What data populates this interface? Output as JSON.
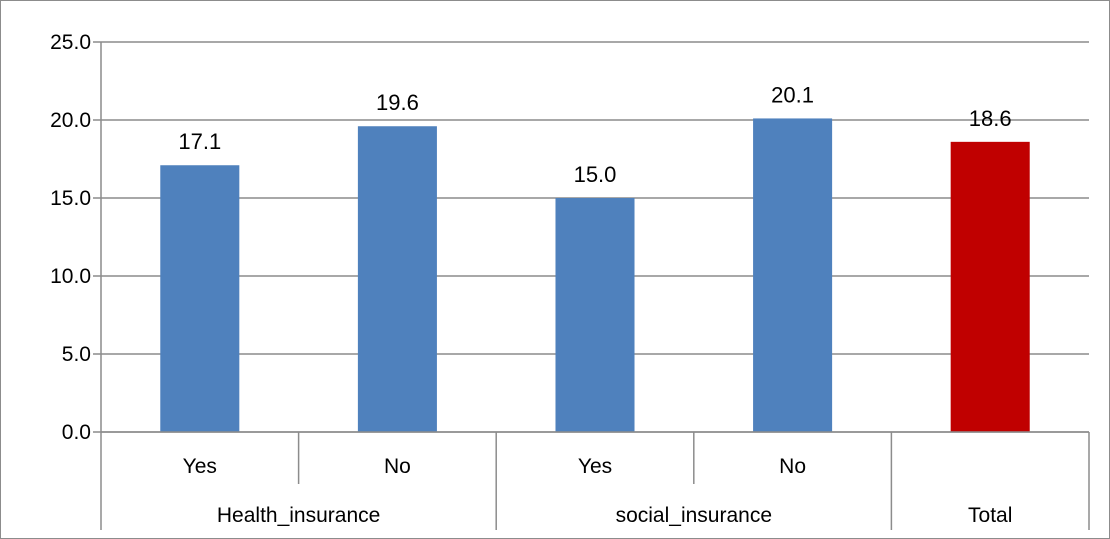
{
  "chart_data": {
    "type": "bar",
    "title": "",
    "xlabel": "",
    "ylabel": "",
    "ylim": [
      0,
      25
    ],
    "yticks": [
      "0.0",
      "5.0",
      "10.0",
      "15.0",
      "20.0",
      "25.0"
    ],
    "ytick_values": [
      0,
      5,
      10,
      15,
      20,
      25
    ],
    "grid": true,
    "legend": "none",
    "groups": [
      {
        "label": "Health_insurance",
        "categories": [
          "Yes",
          "No"
        ]
      },
      {
        "label": "social_insurance",
        "categories": [
          "Yes",
          "No"
        ]
      },
      {
        "label": "Total",
        "categories": [
          ""
        ]
      }
    ],
    "values": [
      17.1,
      19.6,
      15.0,
      20.1,
      18.6
    ],
    "value_labels": [
      "17.1",
      "19.6",
      "15.0",
      "20.1",
      "18.6"
    ],
    "colors": {
      "bar": "#4f81bd",
      "highlight": "#c00000",
      "grid": "#8c8c8c"
    },
    "highlight_index": 4
  }
}
